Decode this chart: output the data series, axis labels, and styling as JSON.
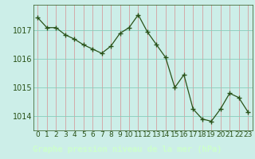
{
  "x": [
    0,
    1,
    2,
    3,
    4,
    5,
    6,
    7,
    8,
    9,
    10,
    11,
    12,
    13,
    14,
    15,
    16,
    17,
    18,
    19,
    20,
    21,
    22,
    23
  ],
  "y": [
    1017.45,
    1017.1,
    1017.1,
    1016.85,
    1016.7,
    1016.5,
    1016.35,
    1016.2,
    1016.45,
    1016.9,
    1017.1,
    1017.55,
    1016.95,
    1016.5,
    1016.05,
    1015.0,
    1015.45,
    1014.25,
    1013.9,
    1013.82,
    1014.25,
    1014.8,
    1014.65,
    1014.15
  ],
  "line_color": "#2a5218",
  "marker_color": "#2a5218",
  "bg_color": "#cceee8",
  "vgrid_color": "#d4a0a0",
  "hgrid_color": "#88ccbb",
  "xlabel": "Graphe pression niveau de la mer (hPa)",
  "xlabel_bg": "#336633",
  "xlabel_fg": "#ccffcc",
  "ylim_min": 1013.5,
  "ylim_max": 1017.9,
  "yticks": [
    1014,
    1015,
    1016,
    1017
  ],
  "tick_fontsize": 7,
  "label_fontsize": 7.5
}
